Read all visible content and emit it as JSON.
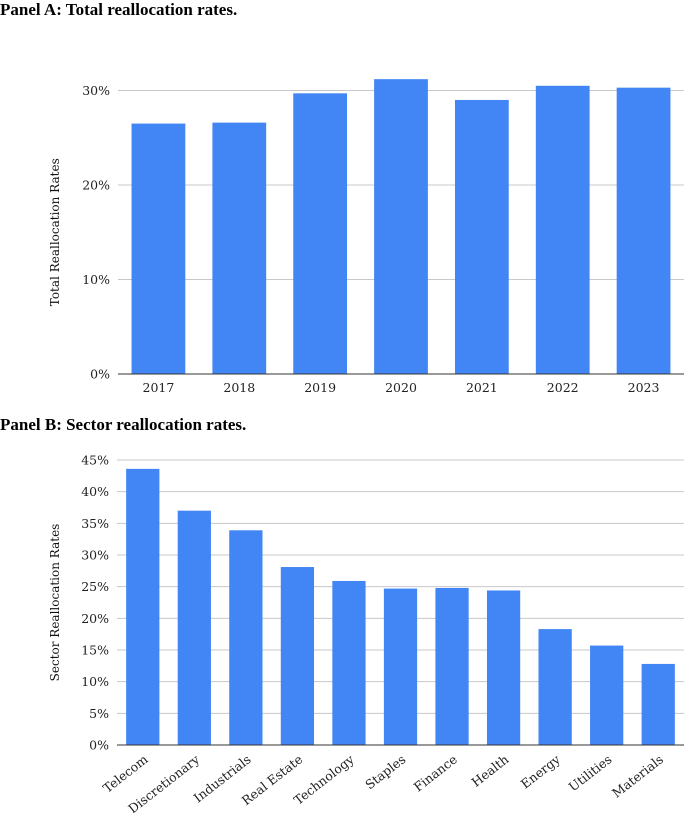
{
  "chart_data": [
    {
      "type": "bar",
      "title": "Panel A: Total reallocation rates.",
      "xlabel": "",
      "ylabel": "Total Reallocation Rates",
      "categories": [
        "2017",
        "2018",
        "2019",
        "2020",
        "2021",
        "2022",
        "2023"
      ],
      "values": [
        26.5,
        26.6,
        29.7,
        31.2,
        29.0,
        30.5,
        30.3
      ],
      "ylim": [
        0,
        30
      ],
      "yticks": [
        0,
        10,
        20,
        30
      ],
      "ytick_labels": [
        "0%",
        "10%",
        "20%",
        "30%"
      ],
      "grid": true,
      "bar_color": "#4285f4"
    },
    {
      "type": "bar",
      "title": "Panel B: Sector reallocation rates.",
      "xlabel": "",
      "ylabel": "Sector Reallocation Rates",
      "categories": [
        "Telecom",
        "Discretionary",
        "Industrials",
        "Real Estate",
        "Technology",
        "Staples",
        "Finance",
        "Health",
        "Energy",
        "Utilities",
        "Materials"
      ],
      "values": [
        43.6,
        37.0,
        33.9,
        28.1,
        25.9,
        24.7,
        24.8,
        24.4,
        18.3,
        15.7,
        12.8
      ],
      "ylim": [
        0,
        45
      ],
      "yticks": [
        0,
        5,
        10,
        15,
        20,
        25,
        30,
        35,
        40,
        45
      ],
      "ytick_labels": [
        "0%",
        "5%",
        "10%",
        "15%",
        "20%",
        "25%",
        "30%",
        "35%",
        "40%",
        "45%"
      ],
      "grid": true,
      "bar_color": "#4285f4"
    }
  ]
}
